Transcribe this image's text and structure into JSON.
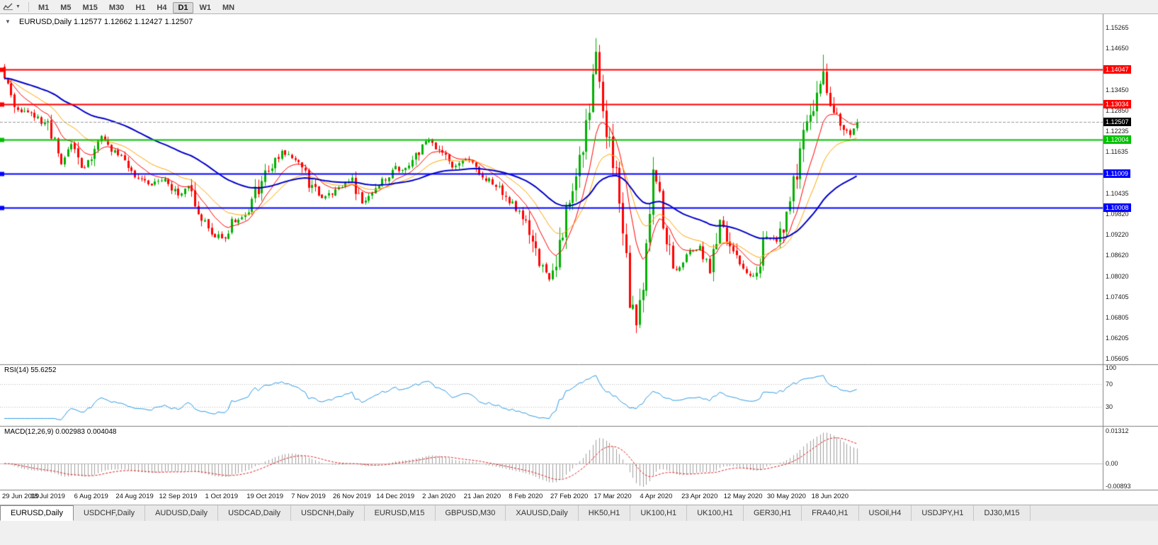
{
  "toolbar": {
    "timeframes": [
      "M1",
      "M5",
      "M15",
      "M30",
      "H1",
      "H4",
      "D1",
      "W1",
      "MN"
    ],
    "active_timeframe": "D1"
  },
  "chart": {
    "title": "EURUSD,Daily",
    "ohlc": "1.12577 1.12662 1.12427 1.12507"
  },
  "chart_data": {
    "type": "candlestick",
    "symbol": "EURUSD",
    "timeframe": "Daily",
    "bars": 256,
    "bars_per_label": 13,
    "bar_spacing": 4.72,
    "price_range": [
      1.0545,
      1.1565
    ],
    "last_close": 1.12507,
    "colors": {
      "up": "#00AF00",
      "down": "#FF0000"
    },
    "waypoints": [
      [
        0,
        1.137
      ],
      [
        3,
        1.1285
      ],
      [
        8,
        1.1275
      ],
      [
        13,
        1.1235
      ],
      [
        17,
        1.113
      ],
      [
        20,
        1.1195
      ],
      [
        23,
        1.1115
      ],
      [
        26,
        1.1145
      ],
      [
        29,
        1.1205
      ],
      [
        33,
        1.1165
      ],
      [
        39,
        1.11
      ],
      [
        44,
        1.106
      ],
      [
        48,
        1.1095
      ],
      [
        52,
        1.1035
      ],
      [
        55,
        1.107
      ],
      [
        58,
        1.099
      ],
      [
        62,
        1.0935
      ],
      [
        65,
        1.0905
      ],
      [
        68,
        1.096
      ],
      [
        73,
        1.0995
      ],
      [
        78,
        1.1105
      ],
      [
        83,
        1.116
      ],
      [
        87,
        1.1145
      ],
      [
        91,
        1.1075
      ],
      [
        95,
        1.1025
      ],
      [
        100,
        1.1055
      ],
      [
        104,
        1.108
      ],
      [
        107,
        1.1005
      ],
      [
        111,
        1.106
      ],
      [
        117,
        1.1115
      ],
      [
        121,
        1.112
      ],
      [
        126,
        1.12
      ],
      [
        130,
        1.117
      ],
      [
        134,
        1.112
      ],
      [
        139,
        1.1145
      ],
      [
        143,
        1.1095
      ],
      [
        148,
        1.1055
      ],
      [
        152,
        1.1005
      ],
      [
        156,
        1.095
      ],
      [
        160,
        1.084
      ],
      [
        163,
        1.0795
      ],
      [
        166,
        1.0875
      ],
      [
        169,
        1.103
      ],
      [
        172,
        1.114
      ],
      [
        175,
        1.13
      ],
      [
        177,
        1.145
      ],
      [
        179,
        1.129
      ],
      [
        181,
        1.1175
      ],
      [
        183,
        1.112
      ],
      [
        185,
        1.095
      ],
      [
        187,
        1.073
      ],
      [
        189,
        1.065
      ],
      [
        191,
        1.078
      ],
      [
        193,
        1.1
      ],
      [
        194,
        1.113
      ],
      [
        197,
        1.097
      ],
      [
        200,
        1.081
      ],
      [
        204,
        1.0865
      ],
      [
        208,
        1.0885
      ],
      [
        211,
        1.0825
      ],
      [
        214,
        1.0975
      ],
      [
        217,
        1.0885
      ],
      [
        221,
        1.0815
      ],
      [
        225,
        1.08
      ],
      [
        228,
        1.0925
      ],
      [
        231,
        1.0905
      ],
      [
        234,
        1.0985
      ],
      [
        237,
        1.111
      ],
      [
        240,
        1.1245
      ],
      [
        243,
        1.1335
      ],
      [
        245,
        1.139
      ],
      [
        247,
        1.13
      ],
      [
        250,
        1.1255
      ],
      [
        253,
        1.1205
      ],
      [
        255,
        1.12507
      ]
    ],
    "extremes": [
      [
        0,
        "h",
        1.139
      ],
      [
        177,
        "h",
        1.1495
      ],
      [
        189,
        "l",
        1.0636
      ],
      [
        245,
        "h",
        1.1447
      ]
    ],
    "ma": [
      {
        "period": 10,
        "color": "#FF0000",
        "width": 1
      },
      {
        "period": 21,
        "color": "#FFA500",
        "width": 1
      },
      {
        "period": 55,
        "color": "#0000C8",
        "width": 2
      }
    ],
    "hlines": [
      {
        "price": 1.14047,
        "color": "#FF0000",
        "width": 2
      },
      {
        "price": 1.13034,
        "color": "#FF0000",
        "width": 2
      },
      {
        "price": 1.12004,
        "color": "#00C000",
        "width": 2
      },
      {
        "price": 1.11009,
        "color": "#0000FF",
        "width": 2
      },
      {
        "price": 1.10008,
        "color": "#0000FF",
        "width": 2
      }
    ],
    "bid_line": {
      "price": 1.12507,
      "color": "#9a9a9a"
    },
    "price_axis": {
      "ticks": [
        "1.15265",
        "1.14650",
        "1.13450",
        "1.12850",
        "1.12235",
        "1.11635",
        "1.10435",
        "1.09820",
        "1.09220",
        "1.08620",
        "1.08020",
        "1.07405",
        "1.06805",
        "1.06205",
        "1.05605"
      ],
      "tags": [
        {
          "label": "1.14047",
          "price": 1.14047,
          "color": "#FF0000"
        },
        {
          "label": "1.13034",
          "price": 1.13034,
          "color": "#FF0000"
        },
        {
          "label": "1.12507",
          "price": 1.12507,
          "color": "#000000"
        },
        {
          "label": "1.12004",
          "price": 1.12004,
          "color": "#00C000"
        },
        {
          "label": "1.11009",
          "price": 1.11009,
          "color": "#0000FF"
        },
        {
          "label": "1.10008",
          "price": 1.10008,
          "color": "#0000FF"
        }
      ]
    },
    "dates": [
      "29 Jun 2019",
      "18 Jul 2019",
      "6 Aug 2019",
      "24 Aug 2019",
      "12 Sep 2019",
      "1 Oct 2019",
      "19 Oct 2019",
      "7 Nov 2019",
      "26 Nov 2019",
      "14 Dec 2019",
      "2 Jan 2020",
      "21 Jan 2020",
      "8 Feb 2020",
      "27 Feb 2020",
      "17 Mar 2020",
      "4 Apr 2020",
      "23 Apr 2020",
      "12 May 2020",
      "30 May 2020",
      "18 Jun 2020"
    ],
    "rsi": {
      "label": "RSI(14) 55.6252",
      "period": 14,
      "last": 55.6252,
      "color": "#2E9BE5",
      "levels": [
        70,
        30
      ],
      "axis": [
        {
          "label": "100",
          "value": 100
        },
        {
          "label": "70",
          "value": 70
        },
        {
          "label": "30",
          "value": 30
        }
      ]
    },
    "macd": {
      "label": "MACD(12,26,9) 0.002983 0.004048",
      "fast": 12,
      "slow": 26,
      "signal": 9,
      "values": [
        0.002983,
        0.004048
      ],
      "hist_color": "#A0A0A0",
      "signal_color": "#E02020",
      "range": [
        -0.0093,
        0.0136
      ],
      "axis": [
        {
          "label": "0.01312",
          "value": 0.01312
        },
        {
          "label": "0.00",
          "value": 0
        },
        {
          "label": "-0.00893",
          "value": -0.00893
        }
      ]
    }
  },
  "tabs": {
    "items": [
      {
        "label": "EURUSD,Daily",
        "active": true
      },
      {
        "label": "USDCHF,Daily"
      },
      {
        "label": "AUDUSD,Daily"
      },
      {
        "label": "USDCAD,Daily"
      },
      {
        "label": "USDCNH,Daily"
      },
      {
        "label": "EURUSD,M15"
      },
      {
        "label": "GBPUSD,M30"
      },
      {
        "label": "XAUUSD,Daily"
      },
      {
        "label": "HK50,H1"
      },
      {
        "label": "UK100,H1"
      },
      {
        "label": "UK100,H1"
      },
      {
        "label": "GER30,H1"
      },
      {
        "label": "FRA40,H1"
      },
      {
        "label": "USOil,H4"
      },
      {
        "label": "USDJPY,H1"
      },
      {
        "label": "DJ30,M15"
      }
    ]
  }
}
